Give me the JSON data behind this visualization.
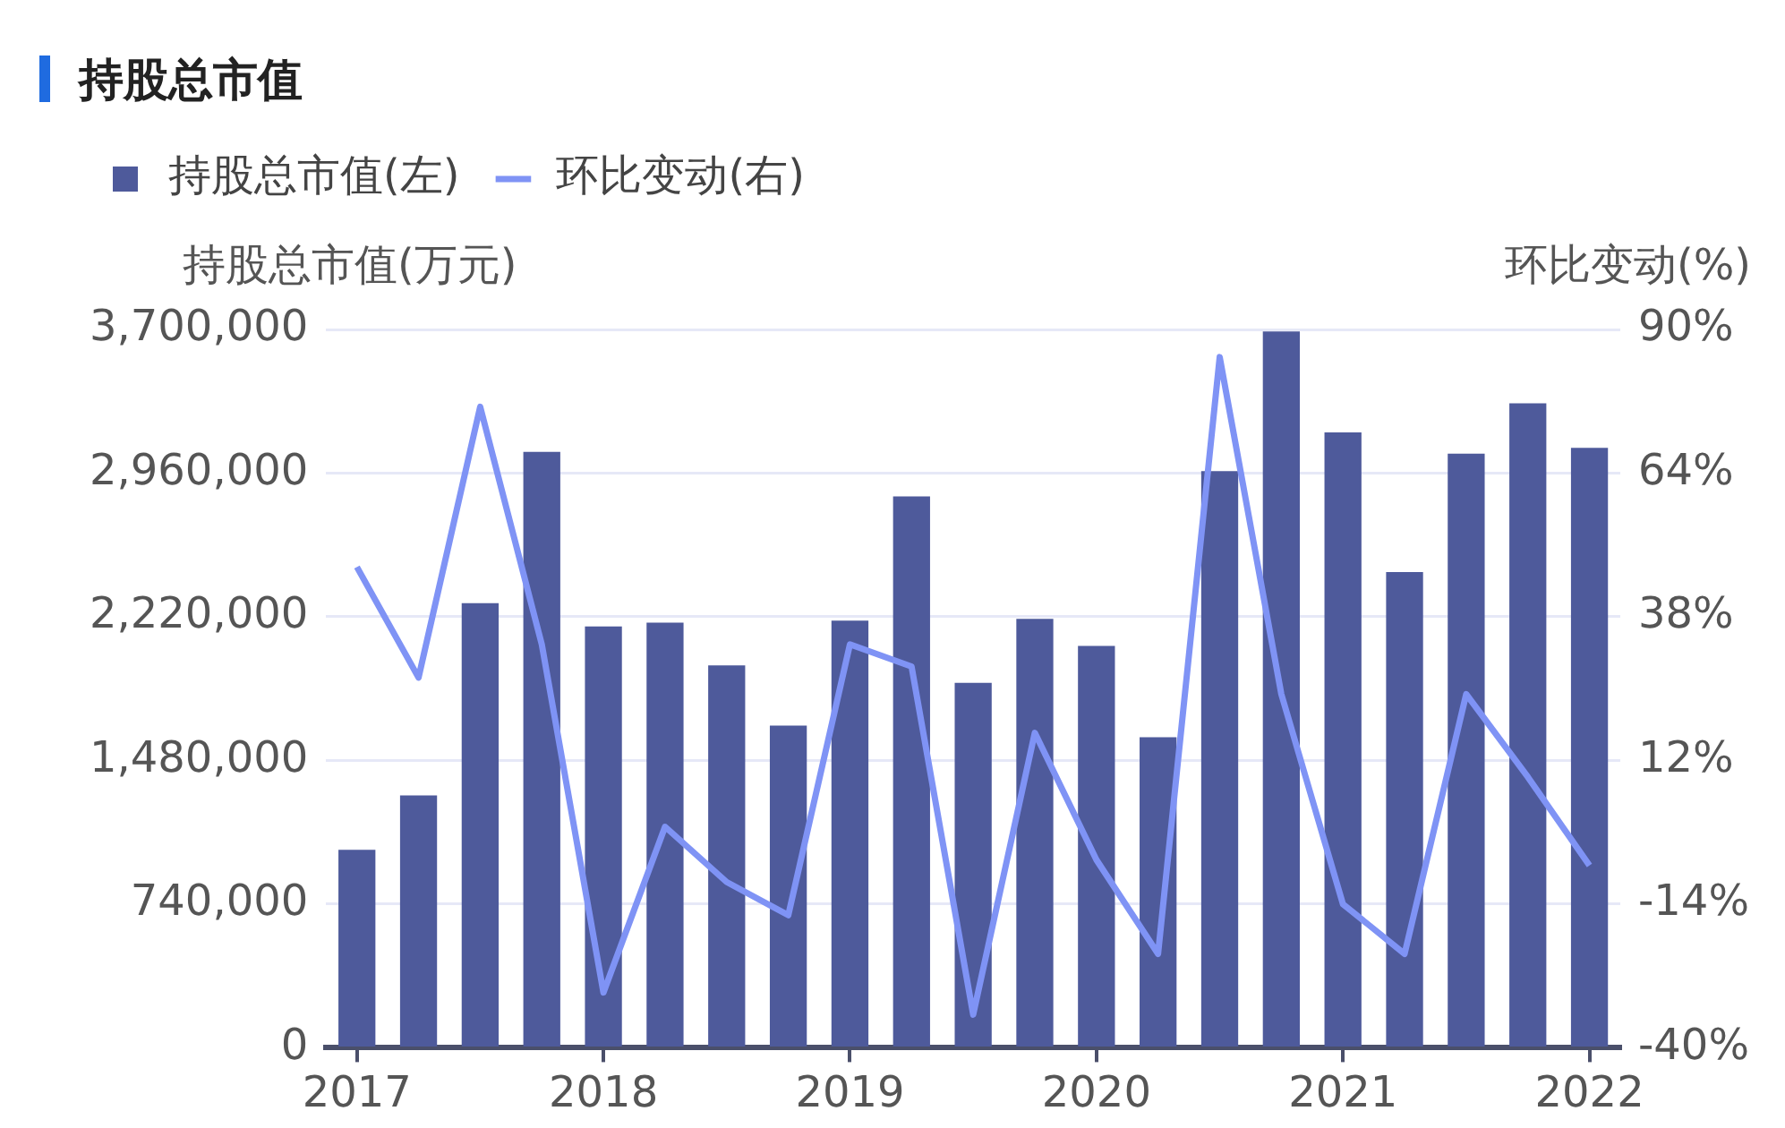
{
  "chart_data": {
    "type": "bar",
    "title": "持股总市值",
    "ylabel": "持股总市值(万元)",
    "y2label": "环比变动(%)",
    "categories": [
      "2017",
      null,
      null,
      null,
      "2018",
      null,
      null,
      null,
      "2019",
      null,
      null,
      null,
      "2020",
      null,
      null,
      null,
      "2021",
      null,
      null,
      null,
      "2022"
    ],
    "series": [
      {
        "name": "持股总市值(左)",
        "color": "#4e5a9b",
        "values": [
          1020000,
          1300000,
          2290000,
          3070000,
          2170000,
          2190000,
          1970000,
          1660000,
          2200000,
          2840000,
          1880000,
          2210000,
          2070000,
          1600000,
          2970000,
          3690000,
          3170000,
          2450000,
          3060000,
          3320000,
          3090000
        ]
      },
      {
        "name": "环比变动(右)",
        "type": "line",
        "axis": "y2",
        "color": "#7f93f5",
        "values": [
          47,
          27,
          76,
          33,
          -30,
          0,
          -10,
          -16,
          33,
          29,
          -34,
          17,
          -6,
          -23,
          85,
          24,
          -14,
          -23,
          24,
          9,
          -7
        ]
      }
    ],
    "ylim": [
      0,
      3700000
    ],
    "yticks": [
      {
        "value": 0,
        "label": "0"
      },
      {
        "value": 740000,
        "label": "740,000"
      },
      {
        "value": 1480000,
        "label": "1,480,000"
      },
      {
        "value": 2220000,
        "label": "2,220,000"
      },
      {
        "value": 2960000,
        "label": "2,960,000"
      },
      {
        "value": 3700000,
        "label": "3,700,000"
      }
    ],
    "y2lim": [
      -40,
      90
    ],
    "y2ticks": [
      {
        "value": -40,
        "label": "-40%"
      },
      {
        "value": -14,
        "label": "-14%"
      },
      {
        "value": 12,
        "label": "12%"
      },
      {
        "value": 38,
        "label": "38%"
      },
      {
        "value": 64,
        "label": "64%"
      },
      {
        "value": 90,
        "label": "90%"
      }
    ],
    "grid": "y",
    "legend": "top left",
    "marker": "none",
    "line_style": "solid"
  }
}
